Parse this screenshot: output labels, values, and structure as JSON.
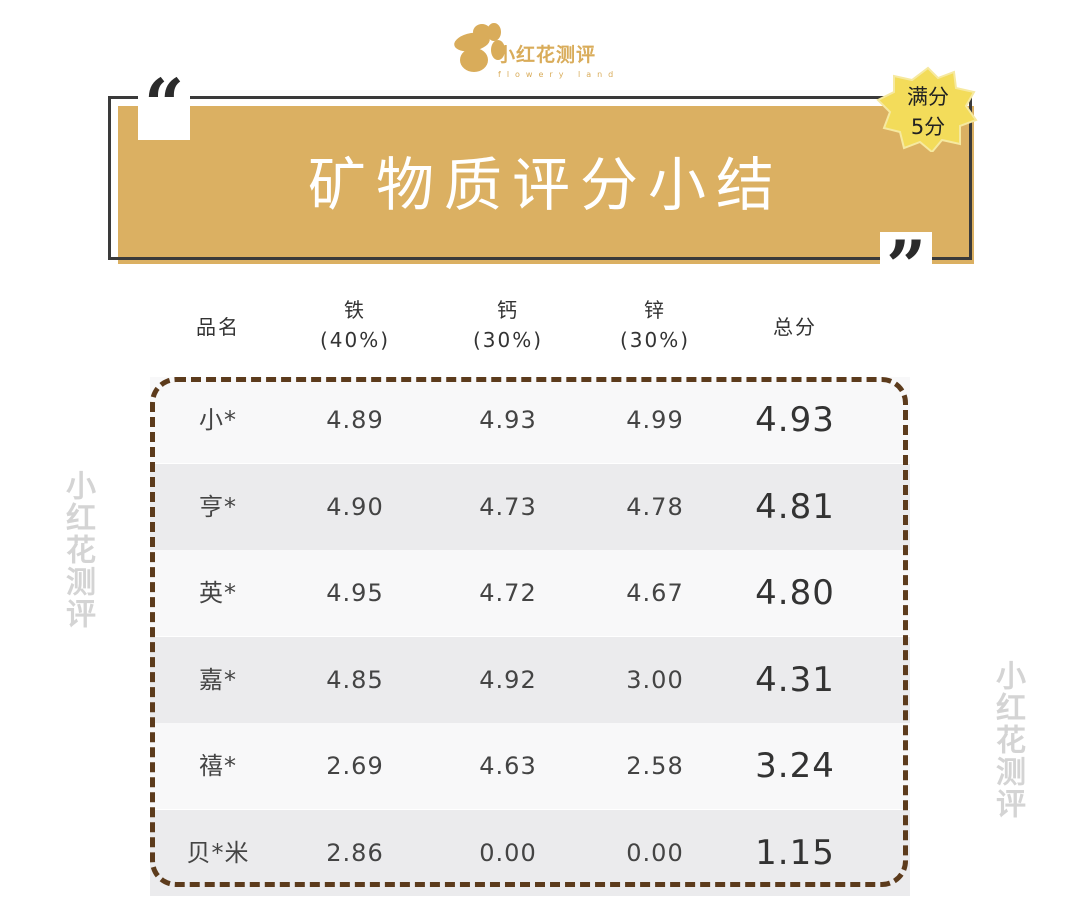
{
  "logo": {
    "text": "小红花测评",
    "sub": "flowery land"
  },
  "banner": {
    "title": "矿物质评分小结",
    "badge_line1": "满分",
    "badge_line2": "5分"
  },
  "colors": {
    "banner": "#dbb062",
    "border": "#5c3b1c",
    "row_alt": "#ebebed"
  },
  "table": {
    "headers": [
      {
        "l1": "品名",
        "l2": ""
      },
      {
        "l1": "铁",
        "l2": "(40%)"
      },
      {
        "l1": "钙",
        "l2": "(30%)"
      },
      {
        "l1": "锌",
        "l2": "(30%)"
      },
      {
        "l1": "总分",
        "l2": ""
      }
    ],
    "rows": [
      [
        "小*",
        "4.89",
        "4.93",
        "4.99",
        "4.93"
      ],
      [
        "亨*",
        "4.90",
        "4.73",
        "4.78",
        "4.81"
      ],
      [
        "英*",
        "4.95",
        "4.72",
        "4.67",
        "4.80"
      ],
      [
        "嘉*",
        "4.85",
        "4.92",
        "3.00",
        "4.31"
      ],
      [
        "禧*",
        "2.69",
        "4.63",
        "2.58",
        "3.24"
      ],
      [
        "贝*米",
        "2.86",
        "0.00",
        "0.00",
        "1.15"
      ]
    ]
  },
  "watermark": "小红花测评"
}
